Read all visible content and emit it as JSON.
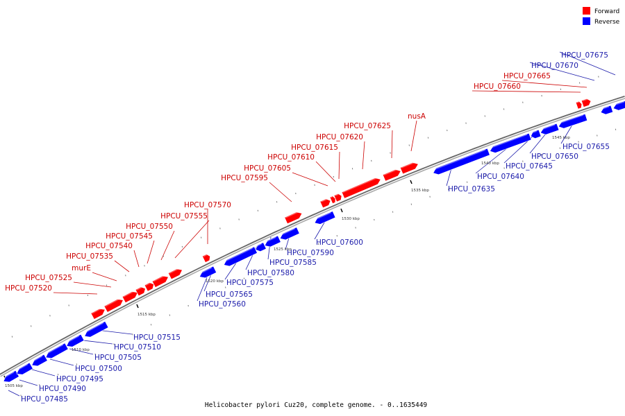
{
  "legend": [
    {
      "label": "Forward",
      "color": "#ff0000"
    },
    {
      "label": "Reverse",
      "color": "#0000ff"
    }
  ],
  "caption": "Helicobacter pylori Cuz20, complete genome. - 0..1635449",
  "colors": {
    "forward": "#ff0000",
    "reverse": "#0000ff",
    "forward_label": "#cc0000",
    "reverse_label": "#1a1aaa",
    "backbone": "#888888"
  },
  "ticks": [
    "1505 kbp",
    "1510 kbp",
    "1515 kbp",
    "1520 kbp",
    "1525 kbp",
    "1530 kbp",
    "1535 kbp",
    "1540 kbp",
    "1545 kbp"
  ],
  "genes": [
    {
      "name": "HPCU_07485",
      "strand": "reverse"
    },
    {
      "name": "HPCU_07490",
      "strand": "reverse"
    },
    {
      "name": "HPCU_07495",
      "strand": "reverse"
    },
    {
      "name": "HPCU_07500",
      "strand": "reverse"
    },
    {
      "name": "HPCU_07505",
      "strand": "reverse"
    },
    {
      "name": "HPCU_07510",
      "strand": "reverse"
    },
    {
      "name": "HPCU_07515",
      "strand": "reverse"
    },
    {
      "name": "HPCU_07520",
      "strand": "forward"
    },
    {
      "name": "HPCU_07525",
      "strand": "forward"
    },
    {
      "name": "murE",
      "strand": "forward"
    },
    {
      "name": "HPCU_07535",
      "strand": "forward"
    },
    {
      "name": "HPCU_07540",
      "strand": "forward"
    },
    {
      "name": "HPCU_07545",
      "strand": "forward"
    },
    {
      "name": "HPCU_07550",
      "strand": "forward"
    },
    {
      "name": "HPCU_07555",
      "strand": "forward"
    },
    {
      "name": "HPCU_07560",
      "strand": "reverse"
    },
    {
      "name": "HPCU_07565",
      "strand": "reverse"
    },
    {
      "name": "HPCU_07570",
      "strand": "forward"
    },
    {
      "name": "HPCU_07575",
      "strand": "reverse"
    },
    {
      "name": "HPCU_07580",
      "strand": "reverse"
    },
    {
      "name": "HPCU_07585",
      "strand": "reverse"
    },
    {
      "name": "HPCU_07590",
      "strand": "reverse"
    },
    {
      "name": "HPCU_07595",
      "strand": "forward"
    },
    {
      "name": "HPCU_07600",
      "strand": "reverse"
    },
    {
      "name": "HPCU_07605",
      "strand": "forward"
    },
    {
      "name": "HPCU_07610",
      "strand": "forward"
    },
    {
      "name": "HPCU_07615",
      "strand": "forward"
    },
    {
      "name": "HPCU_07620",
      "strand": "forward"
    },
    {
      "name": "HPCU_07625",
      "strand": "forward"
    },
    {
      "name": "nusA",
      "strand": "forward"
    },
    {
      "name": "HPCU_07635",
      "strand": "reverse"
    },
    {
      "name": "HPCU_07640",
      "strand": "reverse"
    },
    {
      "name": "HPCU_07645",
      "strand": "reverse"
    },
    {
      "name": "HPCU_07650",
      "strand": "reverse"
    },
    {
      "name": "HPCU_07655",
      "strand": "reverse"
    },
    {
      "name": "HPCU_07660",
      "strand": "forward"
    },
    {
      "name": "HPCU_07665",
      "strand": "forward"
    },
    {
      "name": "HPCU_07670",
      "strand": "reverse"
    },
    {
      "name": "HPCU_07675",
      "strand": "reverse"
    }
  ]
}
